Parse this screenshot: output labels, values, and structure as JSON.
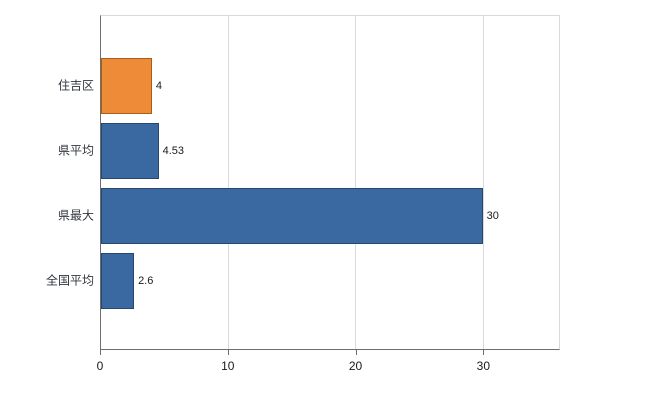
{
  "chart_data": {
    "type": "bar",
    "orientation": "horizontal",
    "title": "",
    "categories": [
      "住吉区",
      "県平均",
      "県最大",
      "全国平均"
    ],
    "values": [
      4,
      4.53,
      30,
      2.6
    ],
    "value_labels": [
      "4",
      "4.53",
      "30",
      "2.6"
    ],
    "series": [
      {
        "name": "value",
        "values": [
          4,
          4.53,
          30,
          2.6
        ]
      }
    ],
    "bar_colors": [
      "#EE8B38",
      "#3A68A0",
      "#3A68A0",
      "#3A68A0"
    ],
    "bar_border_colors": [
      "#A95E14",
      "#27476E",
      "#27476E",
      "#27476E"
    ],
    "xlim": [
      0,
      36
    ],
    "x_ticks": [
      0,
      10,
      20,
      30
    ],
    "x_tick_labels": [
      "0",
      "10",
      "20",
      "30"
    ],
    "xlabel": "",
    "ylabel": "",
    "grid": true,
    "gridline_color": "#d9d9d9",
    "axis_color": "#6e6e6e",
    "background_color": "#ffffff",
    "legend": false
  }
}
